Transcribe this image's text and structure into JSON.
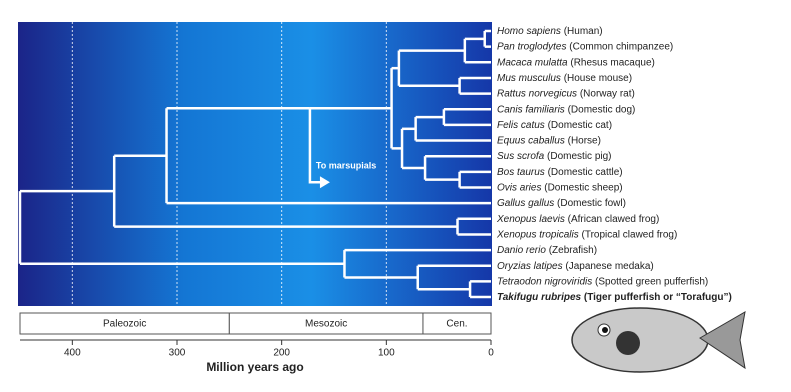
{
  "axis": {
    "label": "Million years ago",
    "xlim": [
      450,
      0
    ],
    "xticks": [
      400,
      300,
      200,
      100,
      0
    ]
  },
  "eras": [
    {
      "name": "Paleozoic",
      "start": 450,
      "end": 250
    },
    {
      "name": "Mesozoic",
      "start": 250,
      "end": 65
    },
    {
      "name": "Cen.",
      "start": 65,
      "end": 0
    }
  ],
  "tree": {
    "time": 450,
    "children": [
      {
        "time": 360,
        "children": [
          {
            "time": 310,
            "children": [
              {
                "time": 173,
                "children": [
                  {
                    "time": 95,
                    "children": [
                      {
                        "time": 88,
                        "children": [
                          {
                            "time": 25,
                            "children": [
                              {
                                "time": 6,
                                "children": [
                                  {
                                    "genus": "Homo sapiens",
                                    "common": "(Human)"
                                  },
                                  {
                                    "genus": "Pan troglodytes",
                                    "common": "(Common chimpanzee)"
                                  }
                                ]
                              },
                              {
                                "genus": "Macaca mulatta",
                                "common": "(Rhesus macaque)"
                              }
                            ]
                          },
                          {
                            "time": 30,
                            "children": [
                              {
                                "genus": "Mus musculus",
                                "common": "(House mouse)"
                              },
                              {
                                "genus": "Rattus norvegicus",
                                "common": "(Norway rat)"
                              }
                            ]
                          }
                        ]
                      },
                      {
                        "time": 85,
                        "children": [
                          {
                            "time": 72,
                            "children": [
                              {
                                "time": 45,
                                "children": [
                                  {
                                    "genus": "Canis familiaris",
                                    "common": "(Domestic dog)"
                                  },
                                  {
                                    "genus": "Felis catus",
                                    "common": "(Domestic cat)"
                                  }
                                ]
                              },
                              {
                                "genus": "Equus caballus",
                                "common": "(Horse)"
                              }
                            ]
                          },
                          {
                            "time": 63,
                            "children": [
                              {
                                "genus": "Sus scrofa",
                                "common": "(Domestic pig)"
                              },
                              {
                                "time": 30,
                                "children": [
                                  {
                                    "genus": "Bos taurus",
                                    "common": "(Domestic cattle)"
                                  },
                                  {
                                    "genus": "Ovis aries",
                                    "common": "(Domestic sheep)"
                                  }
                                ]
                              }
                            ]
                          }
                        ]
                      }
                    ]
                  },
                  {
                    "annotation": "To marsupials"
                  }
                ]
              },
              {
                "genus": "Gallus gallus",
                "common": "(Domestic fowl)"
              }
            ]
          },
          {
            "time": 32,
            "children": [
              {
                "genus": "Xenopus laevis",
                "common": "(African clawed frog)"
              },
              {
                "genus": "Xenopus tropicalis",
                "common": "(Tropical clawed frog)"
              }
            ]
          }
        ]
      },
      {
        "time": 140,
        "children": [
          {
            "genus": "Danio rerio",
            "common": "(Zebrafish)"
          },
          {
            "time": 70,
            "children": [
              {
                "genus": "Oryzias latipes",
                "common": "(Japanese medaka)"
              },
              {
                "time": 20,
                "children": [
                  {
                    "genus": "Tetraodon nigroviridis",
                    "common": "(Spotted green pufferfish)"
                  },
                  {
                    "genus": "Takifugu rubripes",
                    "common": "(Tiger pufferfish or “Torafugu”)",
                    "bold": true
                  }
                ]
              }
            ]
          }
        ]
      }
    ]
  }
}
